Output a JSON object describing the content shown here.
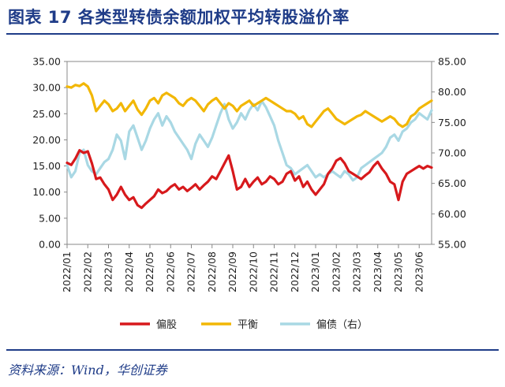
{
  "header": {
    "title": "图表 17  各类型转债余额加权平均转股溢价率"
  },
  "footer": {
    "source": "资料来源：Wind，华创证券"
  },
  "chart_data": {
    "type": "line",
    "x_tick_labels": [
      "2022/01",
      "2022/02",
      "2022/03",
      "2022/04",
      "2022/05",
      "2022/06",
      "2022/07",
      "2022/08",
      "2022/09",
      "2022/10",
      "2022/11",
      "2022/12",
      "2023/01",
      "2023/02",
      "2023/03",
      "2023/04",
      "2023/05",
      "2023/06"
    ],
    "left_axis": {
      "ylim": [
        0,
        35
      ],
      "tick_labels": [
        "0.00",
        "5.00",
        "10.00",
        "15.00",
        "20.00",
        "25.00",
        "30.00",
        "35.00"
      ]
    },
    "right_axis": {
      "ylim": [
        55,
        85
      ],
      "tick_labels": [
        "55.00",
        "60.00",
        "65.00",
        "70.00",
        "75.00",
        "80.00",
        "85.00"
      ]
    },
    "legend_position": "bottom",
    "series": [
      {
        "name": "偏股",
        "axis": "left",
        "color": "#d7191c",
        "x": [
          0,
          0.2,
          0.4,
          0.6,
          0.8,
          1.0,
          1.2,
          1.4,
          1.6,
          1.8,
          2.0,
          2.2,
          2.4,
          2.6,
          2.8,
          3.0,
          3.2,
          3.4,
          3.6,
          3.8,
          4.0,
          4.2,
          4.4,
          4.6,
          4.8,
          5.0,
          5.2,
          5.4,
          5.6,
          5.8,
          6.0,
          6.2,
          6.4,
          6.6,
          6.8,
          7.0,
          7.2,
          7.4,
          7.6,
          7.8,
          8.0,
          8.2,
          8.4,
          8.6,
          8.8,
          9.0,
          9.2,
          9.4,
          9.6,
          9.8,
          10.0,
          10.2,
          10.4,
          10.6,
          10.8,
          11.0,
          11.2,
          11.4,
          11.6,
          11.8,
          12.0,
          12.2,
          12.4,
          12.6,
          12.8,
          13.0,
          13.2,
          13.4,
          13.6,
          13.8,
          14.0,
          14.2,
          14.4,
          14.6,
          14.8,
          15.0,
          15.2,
          15.4,
          15.6,
          15.8,
          16.0,
          16.2,
          16.4,
          16.6,
          16.8,
          17.0,
          17.2,
          17.4,
          17.6
        ],
        "values": [
          15.6,
          15.2,
          16.4,
          18.0,
          17.5,
          17.8,
          15.5,
          12.5,
          12.8,
          11.5,
          10.5,
          8.5,
          9.5,
          11.0,
          9.5,
          8.5,
          9.0,
          7.5,
          7.0,
          7.8,
          8.5,
          9.2,
          10.5,
          9.8,
          10.2,
          11.0,
          11.5,
          10.5,
          11.0,
          10.2,
          10.8,
          11.5,
          10.5,
          11.3,
          12.0,
          13.0,
          12.5,
          14.0,
          15.5,
          17.0,
          14.0,
          10.5,
          11.0,
          12.5,
          11.0,
          12.0,
          12.8,
          11.5,
          12.0,
          13.0,
          12.5,
          11.5,
          12.0,
          13.5,
          14.0,
          12.2,
          13.0,
          11.0,
          12.0,
          10.5,
          9.5,
          10.5,
          11.5,
          13.5,
          14.5,
          16.0,
          16.5,
          15.5,
          14.0,
          13.5,
          13.0,
          12.5,
          13.2,
          13.8,
          15.0,
          15.8,
          14.5,
          13.5,
          12.0,
          11.5,
          8.5,
          12.0,
          13.5,
          14.0,
          14.5,
          15.0,
          14.5,
          15.0,
          14.7
        ]
      },
      {
        "name": "平衡",
        "axis": "left",
        "color": "#f2b705",
        "x": [
          0,
          0.2,
          0.4,
          0.6,
          0.8,
          1.0,
          1.2,
          1.4,
          1.6,
          1.8,
          2.0,
          2.2,
          2.4,
          2.6,
          2.8,
          3.0,
          3.2,
          3.4,
          3.6,
          3.8,
          4.0,
          4.2,
          4.4,
          4.6,
          4.8,
          5.0,
          5.2,
          5.4,
          5.6,
          5.8,
          6.0,
          6.2,
          6.4,
          6.6,
          6.8,
          7.0,
          7.2,
          7.4,
          7.6,
          7.8,
          8.0,
          8.2,
          8.4,
          8.6,
          8.8,
          9.0,
          9.2,
          9.4,
          9.6,
          9.8,
          10.0,
          10.2,
          10.4,
          10.6,
          10.8,
          11.0,
          11.2,
          11.4,
          11.6,
          11.8,
          12.0,
          12.2,
          12.4,
          12.6,
          12.8,
          13.0,
          13.2,
          13.4,
          13.6,
          13.8,
          14.0,
          14.2,
          14.4,
          14.6,
          14.8,
          15.0,
          15.2,
          15.4,
          15.6,
          15.8,
          16.0,
          16.2,
          16.4,
          16.6,
          16.8,
          17.0,
          17.2,
          17.4,
          17.6
        ],
        "values": [
          30.2,
          30.0,
          30.5,
          30.3,
          30.8,
          30.2,
          28.5,
          25.5,
          26.5,
          27.5,
          26.8,
          25.5,
          26.0,
          27.0,
          25.5,
          26.5,
          27.5,
          25.8,
          24.8,
          26.0,
          27.5,
          28.0,
          27.0,
          28.5,
          29.0,
          28.5,
          28.0,
          27.0,
          26.5,
          27.5,
          28.0,
          27.5,
          26.5,
          25.5,
          26.8,
          27.5,
          28.0,
          27.0,
          26.0,
          27.0,
          26.5,
          25.5,
          26.5,
          27.0,
          27.5,
          26.5,
          27.0,
          27.5,
          28.0,
          27.5,
          27.0,
          26.5,
          26.0,
          25.5,
          25.5,
          25.0,
          24.0,
          24.5,
          23.0,
          22.5,
          23.5,
          24.5,
          25.5,
          26.0,
          25.0,
          24.0,
          23.5,
          23.0,
          23.5,
          24.0,
          24.5,
          24.8,
          25.5,
          25.0,
          24.5,
          24.0,
          23.5,
          24.0,
          24.5,
          24.0,
          23.0,
          22.5,
          23.0,
          24.5,
          25.0,
          26.0,
          26.5,
          27.0,
          27.5
        ]
      },
      {
        "name": "偏债（右）",
        "axis": "right",
        "color": "#a9d8e4",
        "x": [
          0,
          0.2,
          0.4,
          0.6,
          0.8,
          1.0,
          1.2,
          1.4,
          1.6,
          1.8,
          2.0,
          2.2,
          2.4,
          2.6,
          2.8,
          3.0,
          3.2,
          3.4,
          3.6,
          3.8,
          4.0,
          4.2,
          4.4,
          4.6,
          4.8,
          5.0,
          5.2,
          5.4,
          5.6,
          5.8,
          6.0,
          6.2,
          6.4,
          6.6,
          6.8,
          7.0,
          7.2,
          7.4,
          7.6,
          7.8,
          8.0,
          8.2,
          8.4,
          8.6,
          8.8,
          9.0,
          9.2,
          9.4,
          9.6,
          9.8,
          10.0,
          10.2,
          10.4,
          10.6,
          10.8,
          11.0,
          11.2,
          11.4,
          11.6,
          11.8,
          12.0,
          12.2,
          12.4,
          12.6,
          12.8,
          13.0,
          13.2,
          13.4,
          13.6,
          13.8,
          14.0,
          14.2,
          14.4,
          14.6,
          14.8,
          15.0,
          15.2,
          15.4,
          15.6,
          15.8,
          16.0,
          16.2,
          16.4,
          16.6,
          16.8,
          17.0,
          17.2,
          17.4,
          17.6
        ],
        "values": [
          68.0,
          66.0,
          67.0,
          70.0,
          70.5,
          68.0,
          67.0,
          66.5,
          67.5,
          68.5,
          69.0,
          70.5,
          73.0,
          72.0,
          69.0,
          73.5,
          74.5,
          72.5,
          70.5,
          72.0,
          74.0,
          75.5,
          76.5,
          74.5,
          76.0,
          75.0,
          73.5,
          72.5,
          71.5,
          70.5,
          69.0,
          71.5,
          73.0,
          72.0,
          71.0,
          72.5,
          74.5,
          76.5,
          78.0,
          75.5,
          74.0,
          75.0,
          76.5,
          75.5,
          77.0,
          78.0,
          77.0,
          78.5,
          77.5,
          76.0,
          74.5,
          72.0,
          70.0,
          68.0,
          67.5,
          66.5,
          67.0,
          67.5,
          68.0,
          67.0,
          66.0,
          66.5,
          66.0,
          66.5,
          67.0,
          66.5,
          66.0,
          67.0,
          66.5,
          65.5,
          66.0,
          67.5,
          68.0,
          68.5,
          69.0,
          69.5,
          70.0,
          71.0,
          72.5,
          73.0,
          72.0,
          73.5,
          74.0,
          75.0,
          75.5,
          76.5,
          76.0,
          75.5,
          77.0
        ]
      }
    ]
  }
}
